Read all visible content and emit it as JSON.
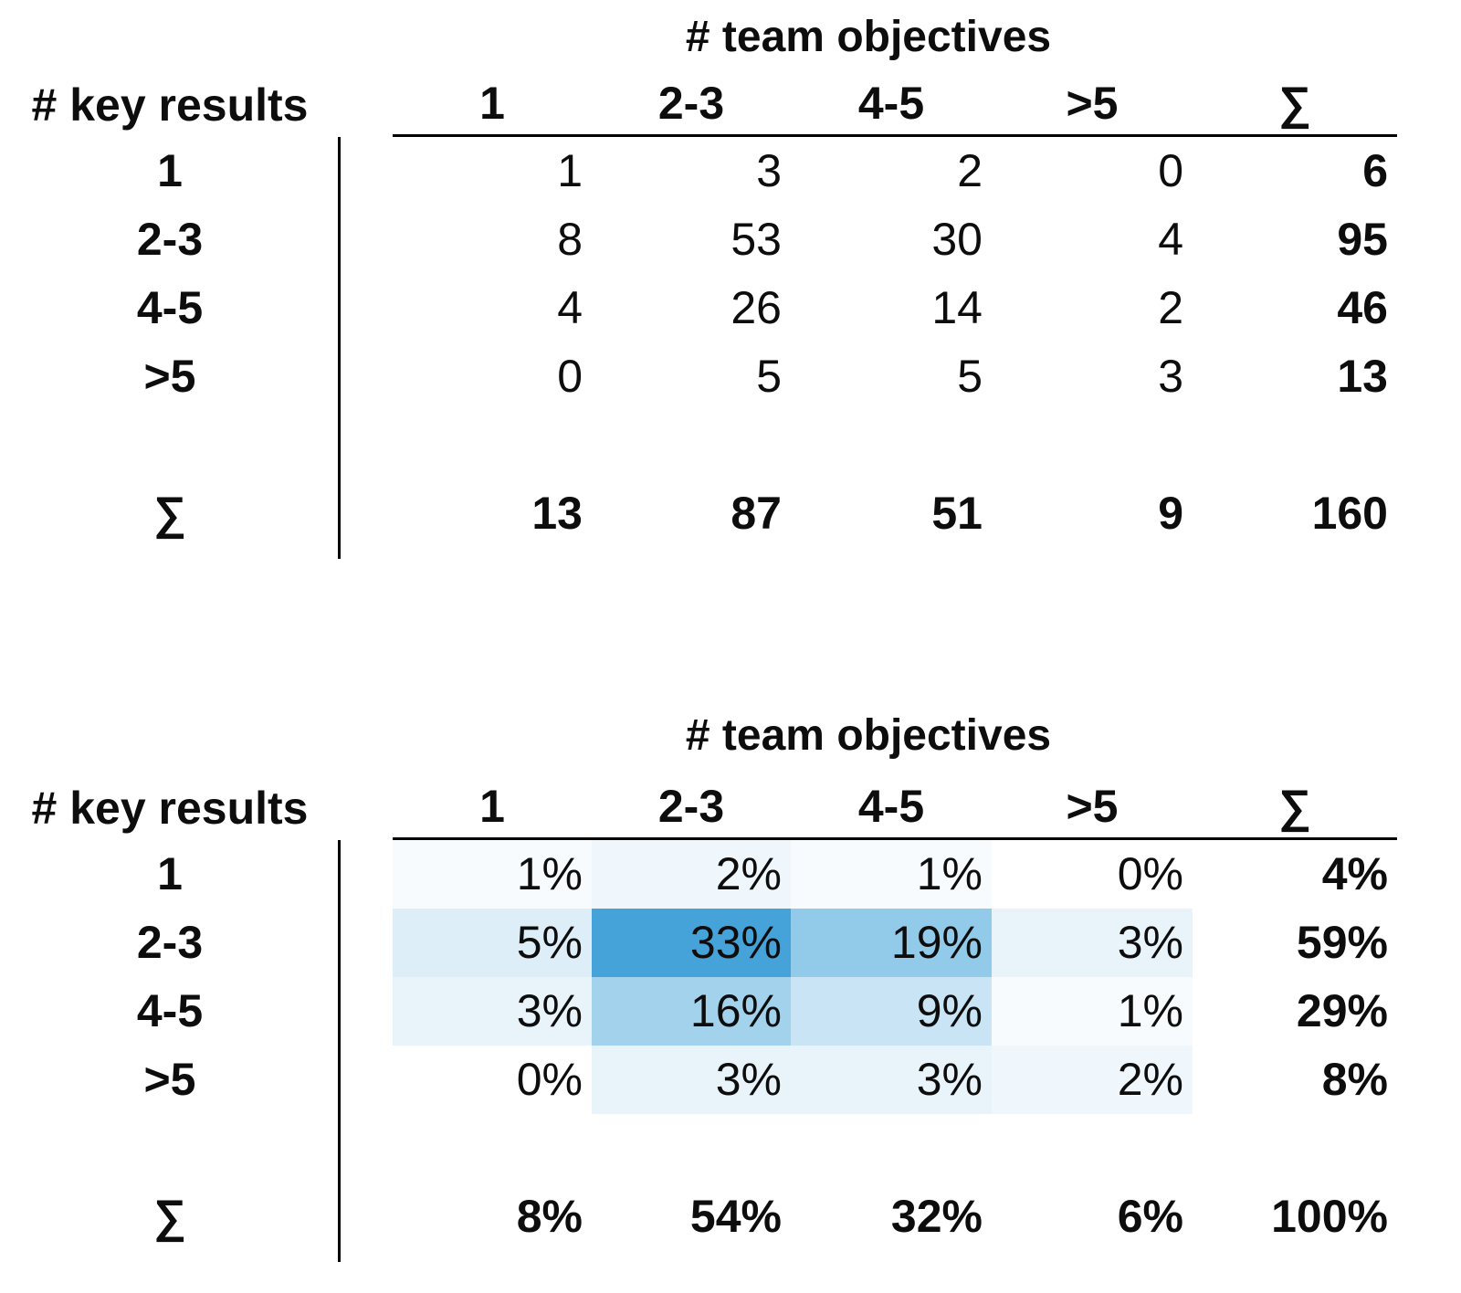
{
  "figure": {
    "accent_color": "#45a3da",
    "text_color": "#0d0d0d",
    "line_color": "#000000"
  },
  "tables": [
    {
      "name": "counts",
      "columns_title": "# team objectives",
      "rows_title": "# key results",
      "col_headers": [
        "1",
        "2-3",
        "4-5",
        ">5",
        "∑"
      ],
      "row_labels": [
        "1",
        "2-3",
        "4-5",
        ">5"
      ],
      "sum_label": "∑",
      "cells": [
        [
          "1",
          "3",
          "2",
          "0"
        ],
        [
          "8",
          "53",
          "30",
          "4"
        ],
        [
          "4",
          "26",
          "14",
          "2"
        ],
        [
          "0",
          "5",
          "5",
          "3"
        ]
      ],
      "row_sums": [
        "6",
        "95",
        "46",
        "13"
      ],
      "col_sums": [
        "13",
        "87",
        "51",
        "9"
      ],
      "grand_total": "160",
      "heatmap": null
    },
    {
      "name": "percentages",
      "columns_title": "# team objectives",
      "rows_title": "# key results",
      "col_headers": [
        "1",
        "2-3",
        "4-5",
        ">5",
        "∑"
      ],
      "row_labels": [
        "1",
        "2-3",
        "4-5",
        ">5"
      ],
      "sum_label": "∑",
      "cells": [
        [
          "1%",
          "2%",
          "1%",
          "0%"
        ],
        [
          "5%",
          "33%",
          "19%",
          "3%"
        ],
        [
          "3%",
          "16%",
          "9%",
          "1%"
        ],
        [
          "0%",
          "3%",
          "3%",
          "2%"
        ]
      ],
      "row_sums": [
        "4%",
        "59%",
        "29%",
        "8%"
      ],
      "col_sums": [
        "8%",
        "54%",
        "32%",
        "6%"
      ],
      "grand_total": "100%",
      "heatmap": [
        [
          "#f7fbfd",
          "#f0f7fc",
          "#f7fbfd",
          "#ffffff"
        ],
        [
          "#ddeef8",
          "#45a3da",
          "#92cbe9",
          "#e9f4fa"
        ],
        [
          "#e9f4fa",
          "#a2d2ec",
          "#c9e4f4",
          "#f7fbfd"
        ],
        [
          "#ffffff",
          "#e9f4fa",
          "#e9f4fa",
          "#f0f7fc"
        ]
      ]
    }
  ],
  "chart_data": [
    {
      "type": "table",
      "title": "# team objectives",
      "xlabel": "# team objectives",
      "ylabel": "# key results",
      "x_categories": [
        "1",
        "2-3",
        "4-5",
        ">5"
      ],
      "y_categories": [
        "1",
        "2-3",
        "4-5",
        ">5"
      ],
      "values": [
        [
          1,
          3,
          2,
          0
        ],
        [
          8,
          53,
          30,
          4
        ],
        [
          4,
          26,
          14,
          2
        ],
        [
          0,
          5,
          5,
          3
        ]
      ],
      "row_totals": [
        6,
        95,
        46,
        13
      ],
      "col_totals": [
        13,
        87,
        51,
        9
      ],
      "grand_total": 160
    },
    {
      "type": "heatmap",
      "title": "# team objectives",
      "xlabel": "# team objectives",
      "ylabel": "# key results",
      "x_categories": [
        "1",
        "2-3",
        "4-5",
        ">5"
      ],
      "y_categories": [
        "1",
        "2-3",
        "4-5",
        ">5"
      ],
      "values_percent": [
        [
          1,
          2,
          1,
          0
        ],
        [
          5,
          33,
          19,
          3
        ],
        [
          3,
          16,
          9,
          1
        ],
        [
          0,
          3,
          3,
          2
        ]
      ],
      "row_totals_percent": [
        4,
        59,
        29,
        8
      ],
      "col_totals_percent": [
        8,
        54,
        32,
        6
      ],
      "grand_total_percent": 100,
      "colormap": "white-to-blue",
      "max_color": "#45a3da"
    }
  ]
}
